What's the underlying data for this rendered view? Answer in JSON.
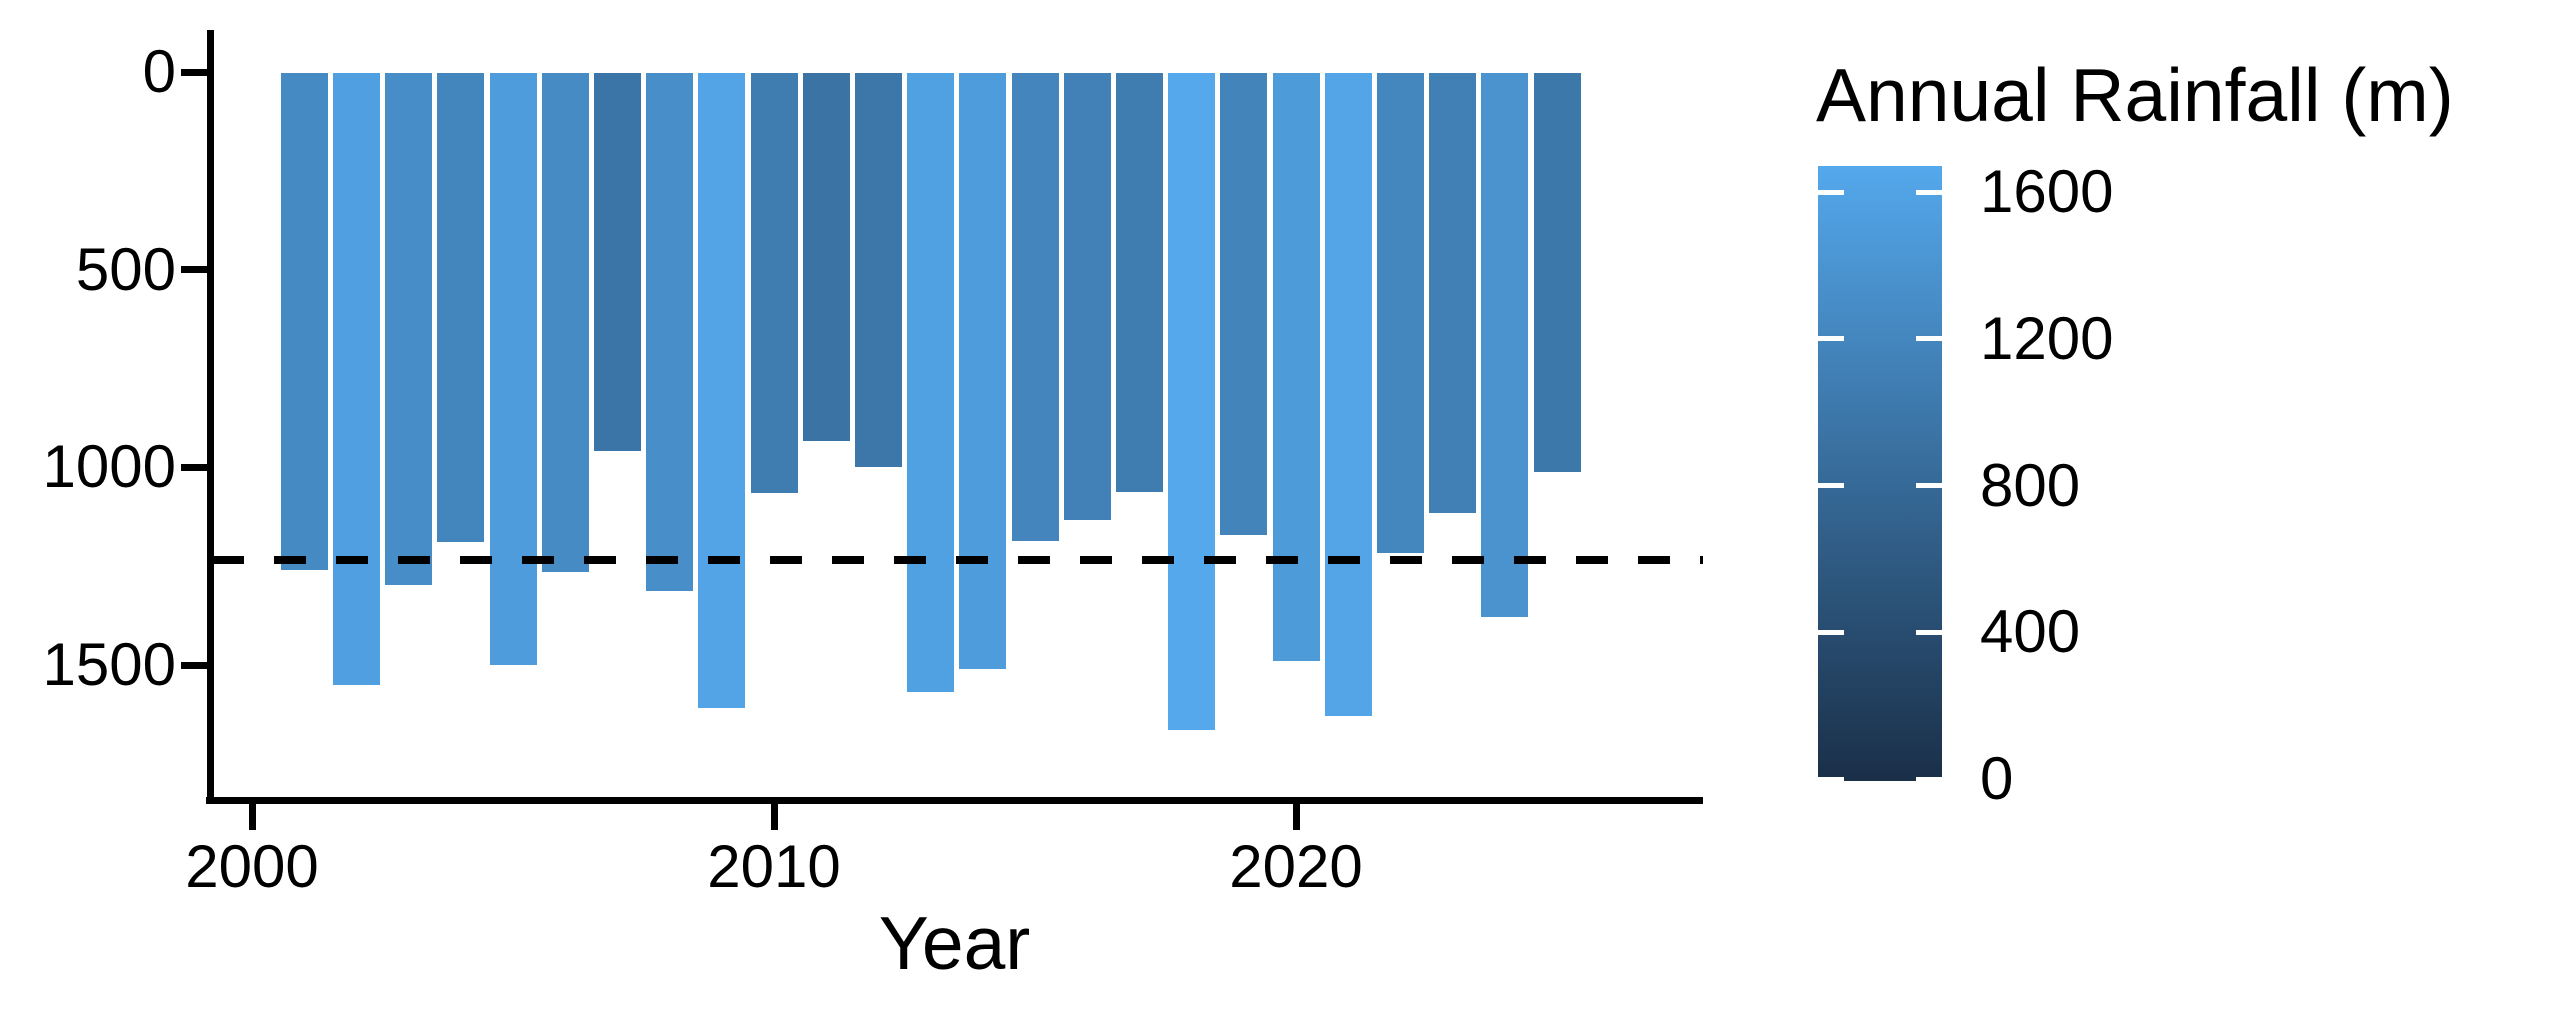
{
  "chart_data": {
    "type": "bar",
    "title": "",
    "xlabel": "Year",
    "x_tick_labels": [
      "2000",
      "2010",
      "2020"
    ],
    "y_tick_labels": [
      "0",
      "500",
      "1000",
      "1500"
    ],
    "y_axis_inverted": true,
    "ylim": [
      0,
      1845
    ],
    "categories": [
      2001,
      2002,
      2003,
      2004,
      2005,
      2006,
      2007,
      2008,
      2009,
      2010,
      2011,
      2012,
      2013,
      2014,
      2015,
      2016,
      2017,
      2018,
      2019,
      2020,
      2021,
      2022,
      2023,
      2024,
      2025
    ],
    "values": [
      1260,
      1550,
      1298,
      1188,
      1500,
      1265,
      958,
      1312,
      1608,
      1064,
      933,
      1000,
      1568,
      1510,
      1186,
      1133,
      1062,
      1664,
      1170,
      1490,
      1630,
      1216,
      1115,
      1378,
      1013
    ],
    "dashed_line_value": 1234,
    "grid": "off",
    "legend": {
      "title": "Annual Rainfall (m)",
      "position": "right",
      "tick_labels": [
        "1600",
        "1200",
        "800",
        "400",
        "0"
      ],
      "tick_values": [
        1600,
        1200,
        800,
        400,
        0
      ],
      "scale_max": 1670,
      "scale_min": 0
    },
    "colors": {
      "bar_color_low": "#1a2f48",
      "bar_color_high": "#54a8ec",
      "axis": "#000000",
      "dashed_line": "#000000",
      "background": "#ffffff",
      "colorbar_tick": "#ffffff"
    }
  }
}
